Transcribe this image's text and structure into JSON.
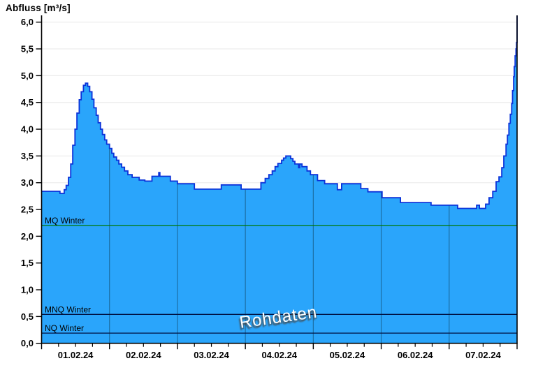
{
  "page": {
    "background": "#ffffff"
  },
  "header": {
    "title": "Abfluss [m³/s]"
  },
  "watermark": {
    "text": "Rohdaten"
  },
  "chart_data": {
    "type": "area",
    "title": "Abfluss [m³/s]",
    "ylabel": "Abfluss [m³/s]",
    "xlabel": "",
    "grid": true,
    "legend": "none",
    "watermark": "Rohdaten",
    "x_axis": {
      "tick_labels": [
        "01.02.24",
        "02.02.24",
        "03.02.24",
        "04.02.24",
        "05.02.24",
        "06.02.24",
        "07.02.24"
      ],
      "range_days": 7,
      "minor_tick_hours": 6
    },
    "y_axis": {
      "min": 0.0,
      "max": 6.0,
      "step": 0.5,
      "tick_labels": [
        "0,0",
        "0,5",
        "1,0",
        "1,5",
        "2,0",
        "2,5",
        "3,0",
        "3,5",
        "4,0",
        "4,5",
        "5,0",
        "5,5",
        "6,0"
      ]
    },
    "series": {
      "name": "Abfluss Rohdaten",
      "unit": "m³/s",
      "interpolation": "step-after",
      "points_hours_value": [
        [
          0,
          2.84
        ],
        [
          6.5,
          2.8
        ],
        [
          8,
          2.87
        ],
        [
          8.7,
          2.95
        ],
        [
          9.5,
          3.1
        ],
        [
          10.3,
          3.35
        ],
        [
          11,
          3.7
        ],
        [
          11.8,
          4.0
        ],
        [
          12.5,
          4.3
        ],
        [
          13.3,
          4.55
        ],
        [
          14,
          4.7
        ],
        [
          14.8,
          4.82
        ],
        [
          15.5,
          4.86
        ],
        [
          16.3,
          4.8
        ],
        [
          17,
          4.7
        ],
        [
          17.8,
          4.56
        ],
        [
          18.5,
          4.4
        ],
        [
          19.3,
          4.26
        ],
        [
          20,
          4.12
        ],
        [
          20.8,
          4.0
        ],
        [
          21.5,
          3.9
        ],
        [
          22.3,
          3.8
        ],
        [
          23,
          3.72
        ],
        [
          24,
          3.64
        ],
        [
          24.8,
          3.55
        ],
        [
          25.5,
          3.48
        ],
        [
          26.5,
          3.42
        ],
        [
          27.3,
          3.35
        ],
        [
          28.3,
          3.29
        ],
        [
          29.3,
          3.22
        ],
        [
          30.5,
          3.15
        ],
        [
          32,
          3.1
        ],
        [
          34.5,
          3.05
        ],
        [
          36.5,
          3.03
        ],
        [
          39,
          3.12
        ],
        [
          41.4,
          3.19
        ],
        [
          41.8,
          3.12
        ],
        [
          45.5,
          3.03
        ],
        [
          48,
          2.98
        ],
        [
          54,
          2.88
        ],
        [
          63.5,
          2.96
        ],
        [
          70.5,
          2.88
        ],
        [
          77.5,
          3.0
        ],
        [
          79,
          3.08
        ],
        [
          80.3,
          3.15
        ],
        [
          81.5,
          3.22
        ],
        [
          82.5,
          3.3
        ],
        [
          83.5,
          3.36
        ],
        [
          84.8,
          3.42
        ],
        [
          85.5,
          3.46
        ],
        [
          86.3,
          3.5
        ],
        [
          88,
          3.45
        ],
        [
          88.8,
          3.4
        ],
        [
          89.5,
          3.35
        ],
        [
          90.8,
          3.28
        ],
        [
          91.2,
          3.35
        ],
        [
          92,
          3.3
        ],
        [
          93.8,
          3.22
        ],
        [
          95,
          3.15
        ],
        [
          97.5,
          3.04
        ],
        [
          100,
          2.98
        ],
        [
          104.5,
          2.87
        ],
        [
          106,
          2.98
        ],
        [
          112.8,
          2.89
        ],
        [
          115.3,
          2.83
        ],
        [
          120.3,
          2.72
        ],
        [
          126.8,
          2.63
        ],
        [
          137.6,
          2.58
        ],
        [
          147,
          2.52
        ],
        [
          153.7,
          2.58
        ],
        [
          154.7,
          2.52
        ],
        [
          156.9,
          2.6
        ],
        [
          158.1,
          2.72
        ],
        [
          159.4,
          2.84
        ],
        [
          160.6,
          3.02
        ],
        [
          161.6,
          3.11
        ],
        [
          162.6,
          3.28
        ],
        [
          163.3,
          3.5
        ],
        [
          164.1,
          3.72
        ],
        [
          164.6,
          3.89
        ],
        [
          165.1,
          4.11
        ],
        [
          165.6,
          4.28
        ],
        [
          166.1,
          4.48
        ],
        [
          166.4,
          4.72
        ],
        [
          166.8,
          4.98
        ],
        [
          167,
          5.17
        ],
        [
          167.3,
          5.37
        ],
        [
          167.6,
          5.5
        ],
        [
          167.8,
          5.62
        ],
        [
          168,
          6.12
        ]
      ]
    },
    "reference_lines": [
      {
        "label": "MQ Winter",
        "value": 2.2,
        "color": "#007800"
      },
      {
        "label": "MNQ Winter",
        "value": 0.54,
        "color": "#001040"
      },
      {
        "label": "NQ Winter",
        "value": 0.19,
        "color": "#001040"
      }
    ],
    "colors": {
      "fill": "#2aa5fb",
      "outline": "#0b32d9",
      "grid_horizontal": "#e8e8e8",
      "grid_vertical_over_fill": "#1c6fa5",
      "axis": "#000000",
      "tick_text": "#000000"
    }
  }
}
